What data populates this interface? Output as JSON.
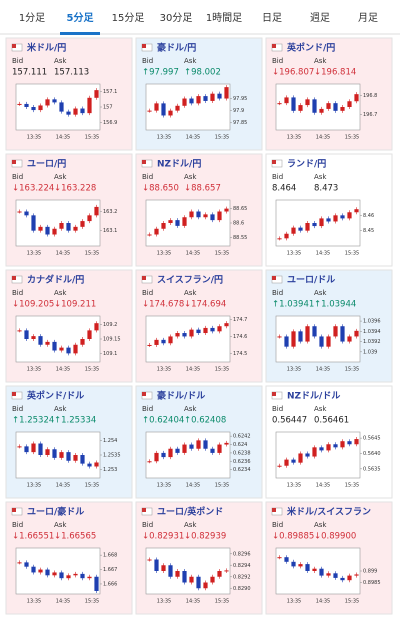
{
  "tabs": {
    "items": [
      "1分足",
      "5分足",
      "15分足",
      "30分足",
      "1時間足",
      "日足",
      "週足",
      "月足"
    ],
    "active": 1
  },
  "bid_label": "Bid",
  "ask_label": "Ask",
  "time_labels": [
    "13:35",
    "14:35",
    "15:35"
  ],
  "panels": [
    {
      "name": "米ドル/円",
      "bg": "pink",
      "bid": "157.111",
      "ask": "157.113",
      "ylim": [
        156.85,
        157.15
      ],
      "yticks": [
        157.1,
        157,
        156.9
      ],
      "closes": [
        157.02,
        157.0,
        156.98,
        157.01,
        157.05,
        157.03,
        156.97,
        156.95,
        156.99,
        156.96,
        157.06,
        157.11
      ]
    },
    {
      "name": "豪ドル/円",
      "bg": "blue",
      "bid": "↑97.997",
      "ask": "↑98.002",
      "ylim": [
        97.82,
        98.01
      ],
      "yticks": [
        97.95,
        97.9,
        97.85
      ],
      "closes": [
        97.9,
        97.93,
        97.88,
        97.9,
        97.92,
        97.95,
        97.93,
        97.96,
        97.94,
        97.97,
        97.95,
        97.997
      ]
    },
    {
      "name": "英ポンド/円",
      "bg": "pink",
      "bid": "↓196.807",
      "ask": "↓196.814",
      "ylim": [
        196.62,
        196.86
      ],
      "yticks": [
        196.8,
        196.7
      ],
      "closes": [
        196.76,
        196.79,
        196.72,
        196.75,
        196.78,
        196.71,
        196.73,
        196.76,
        196.72,
        196.74,
        196.77,
        196.807
      ]
    },
    {
      "name": "ユーロ/円",
      "bg": "pink",
      "bid": "↓163.224",
      "ask": "↓163.228",
      "ylim": [
        163.02,
        163.26
      ],
      "yticks": [
        163.2,
        163.1
      ],
      "closes": [
        163.2,
        163.18,
        163.1,
        163.12,
        163.08,
        163.11,
        163.14,
        163.1,
        163.12,
        163.15,
        163.18,
        163.224
      ]
    },
    {
      "name": "NZドル/円",
      "bg": "pink",
      "bid": "↓88.650",
      "ask": "↓88.657",
      "ylim": [
        88.52,
        88.68
      ],
      "yticks": [
        88.65,
        88.6,
        88.55
      ],
      "closes": [
        88.56,
        88.58,
        88.6,
        88.61,
        88.59,
        88.62,
        88.64,
        88.62,
        88.63,
        88.61,
        88.64,
        88.65
      ]
    },
    {
      "name": "ランド/円",
      "bg": "white",
      "bid": "8.464",
      "ask": "8.473",
      "ylim": [
        8.44,
        8.47
      ],
      "yticks": [
        8.46,
        8.45
      ],
      "closes": [
        8.445,
        8.448,
        8.452,
        8.45,
        8.455,
        8.453,
        8.458,
        8.456,
        8.46,
        8.458,
        8.462,
        8.464
      ]
    },
    {
      "name": "カナダドル/円",
      "bg": "pink",
      "bid": "↓109.205",
      "ask": "↓109.211",
      "ylim": [
        109.07,
        109.23
      ],
      "yticks": [
        109.2,
        109.15,
        109.1
      ],
      "closes": [
        109.18,
        109.15,
        109.16,
        109.13,
        109.14,
        109.11,
        109.12,
        109.1,
        109.13,
        109.15,
        109.18,
        109.205
      ]
    },
    {
      "name": "スイスフラン/円",
      "bg": "pink",
      "bid": "↓174.678",
      "ask": "↓174.694",
      "ylim": [
        174.45,
        174.72
      ],
      "yticks": [
        174.7,
        174.6,
        174.5
      ],
      "closes": [
        174.55,
        174.58,
        174.56,
        174.6,
        174.62,
        174.6,
        174.64,
        174.62,
        174.65,
        174.63,
        174.66,
        174.678
      ]
    },
    {
      "name": "ユーロ/ドル",
      "bg": "blue",
      "bid": "↑1.03941",
      "ask": "↑1.03944",
      "ylim": [
        1.0388,
        1.0397
      ],
      "yticks": [
        1.0396,
        1.0394,
        1.0392,
        1.039
      ],
      "closes": [
        1.0393,
        1.0391,
        1.0394,
        1.0392,
        1.0395,
        1.0393,
        1.0391,
        1.0393,
        1.0395,
        1.0392,
        1.0393,
        1.03941
      ]
    },
    {
      "name": "英ポンド/ドル",
      "bg": "blue",
      "bid": "↑1.25324",
      "ask": "↑1.25334",
      "ylim": [
        1.2527,
        1.2543
      ],
      "yticks": [
        1.254,
        1.2535,
        1.253
      ],
      "closes": [
        1.2538,
        1.2536,
        1.2539,
        1.2535,
        1.2537,
        1.2534,
        1.2536,
        1.2533,
        1.2535,
        1.2532,
        1.2531,
        1.25324
      ]
    },
    {
      "name": "豪ドル/ドル",
      "bg": "blue",
      "bid": "↑0.62404",
      "ask": "↑0.62408",
      "ylim": [
        0.6232,
        0.6243
      ],
      "yticks": [
        0.6242,
        0.624,
        0.6238,
        0.6236,
        0.6234
      ],
      "closes": [
        0.6236,
        0.6238,
        0.6237,
        0.6239,
        0.6238,
        0.624,
        0.6239,
        0.6241,
        0.6239,
        0.6238,
        0.624,
        0.62404
      ]
    },
    {
      "name": "NZドル/ドル",
      "bg": "white",
      "bid": "0.56447",
      "ask": "0.56461",
      "ylim": [
        0.5632,
        0.5647
      ],
      "yticks": [
        0.5645,
        {
          "value": 0.564,
          "label": "0.5640"
        },
        0.5635
      ],
      "closes": [
        0.5636,
        0.5638,
        0.5637,
        0.564,
        0.5639,
        0.5642,
        0.5641,
        0.5643,
        0.5642,
        0.5644,
        0.5643,
        0.56447
      ]
    },
    {
      "name": "ユーロ/豪ドル",
      "bg": "pink",
      "bid": "↓1.66551",
      "ask": "↓1.66565",
      "ylim": [
        1.6653,
        1.6685
      ],
      "yticks": [
        1.668,
        1.667,
        1.666
      ],
      "closes": [
        1.6675,
        1.6672,
        1.6668,
        1.667,
        1.6666,
        1.6668,
        1.6664,
        1.6666,
        1.6667,
        1.6664,
        1.6665,
        1.66551
      ]
    },
    {
      "name": "ユーロ/英ポンド",
      "bg": "pink",
      "bid": "↓0.82931",
      "ask": "↓0.82939",
      "ylim": [
        0.8289,
        0.8297
      ],
      "yticks": [
        0.8296,
        0.8294,
        0.8292,
        {
          "value": 0.829,
          "label": "0.8290"
        }
      ],
      "closes": [
        0.8295,
        0.8293,
        0.8294,
        0.8292,
        0.8293,
        0.8291,
        0.8292,
        0.829,
        0.8291,
        0.8292,
        0.8293,
        0.82931
      ]
    },
    {
      "name": "米ドル/スイスフラン",
      "bg": "pink",
      "bid": "↓0.89885",
      "ask": "↓0.89900",
      "ylim": [
        0.898,
        0.9
      ],
      "yticks": [
        0.899,
        0.8985
      ],
      "closes": [
        0.8996,
        0.8994,
        0.8992,
        0.8993,
        0.899,
        0.8991,
        0.8988,
        0.8989,
        0.8987,
        0.8986,
        0.8988,
        0.89885
      ]
    }
  ]
}
